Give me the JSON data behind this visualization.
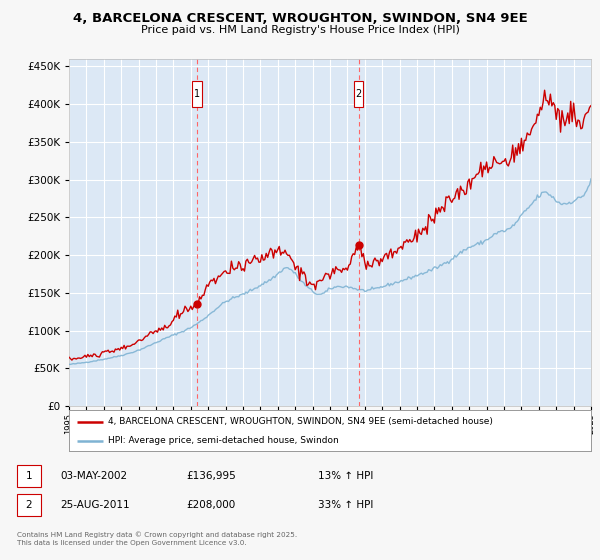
{
  "title_line1": "4, BARCELONA CRESCENT, WROUGHTON, SWINDON, SN4 9EE",
  "title_line2": "Price paid vs. HM Land Registry's House Price Index (HPI)",
  "background_color": "#f7f7f7",
  "plot_bg_color": "#dce8f5",
  "grid_color": "#ffffff",
  "red_line_color": "#cc0000",
  "blue_line_color": "#7fb3d3",
  "purchase1_date": "03-MAY-2002",
  "purchase1_price": 136995,
  "purchase1_hpi": "13% ↑ HPI",
  "purchase2_date": "25-AUG-2011",
  "purchase2_price": 208000,
  "purchase2_hpi": "33% ↑ HPI",
  "legend_label1": "4, BARCELONA CRESCENT, WROUGHTON, SWINDON, SN4 9EE (semi-detached house)",
  "legend_label2": "HPI: Average price, semi-detached house, Swindon",
  "footer_text": "Contains HM Land Registry data © Crown copyright and database right 2025.\nThis data is licensed under the Open Government Licence v3.0.",
  "ylim": [
    0,
    460000
  ],
  "yticks": [
    0,
    50000,
    100000,
    150000,
    200000,
    250000,
    300000,
    350000,
    400000,
    450000
  ],
  "year_start": 1995,
  "year_end": 2025,
  "purchase1_year": 2002.37,
  "purchase2_year": 2011.64
}
